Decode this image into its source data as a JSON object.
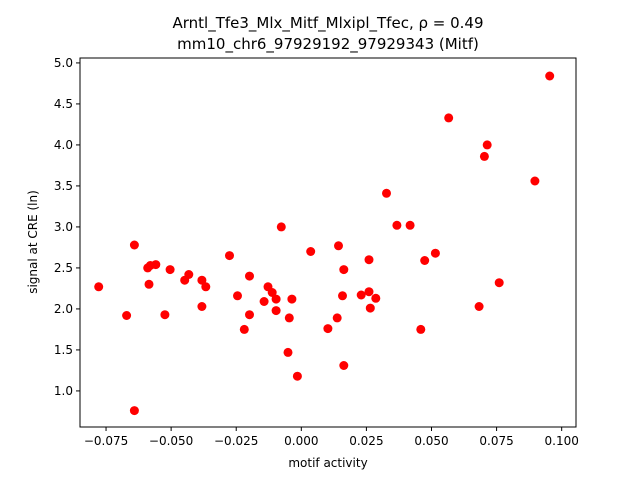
{
  "chart_data": {
    "type": "scatter",
    "title_line1": "Arntl_Tfe3_Mlx_Mitf_Mlxipl_Tfec, ρ = 0.49",
    "title_line2": "mm10_chr6_97929192_97929343 (Mitf)",
    "xlabel": "motif activity",
    "ylabel": "signal at CRE (ln)",
    "xlim": [
      -0.085,
      0.1055
    ],
    "ylim": [
      0.56,
      5.06
    ],
    "x_ticks": [
      -0.075,
      -0.05,
      -0.025,
      0.0,
      0.025,
      0.05,
      0.075,
      0.1
    ],
    "x_tick_labels": [
      "−0.075",
      "−0.050",
      "−0.025",
      "0.000",
      "0.025",
      "0.050",
      "0.075",
      "0.100"
    ],
    "y_ticks": [
      1.0,
      1.5,
      2.0,
      2.5,
      3.0,
      3.5,
      4.0,
      4.5,
      5.0
    ],
    "y_tick_labels": [
      "1.0",
      "1.5",
      "2.0",
      "2.5",
      "3.0",
      "3.5",
      "4.0",
      "4.5",
      "5.0"
    ],
    "grid": false,
    "marker_color": "#ff0000",
    "points": [
      {
        "x": -0.0778,
        "y": 2.27
      },
      {
        "x": -0.0671,
        "y": 1.92
      },
      {
        "x": -0.0641,
        "y": 2.78
      },
      {
        "x": -0.0641,
        "y": 0.76
      },
      {
        "x": -0.059,
        "y": 2.5
      },
      {
        "x": -0.0585,
        "y": 2.3
      },
      {
        "x": -0.058,
        "y": 2.53
      },
      {
        "x": -0.0559,
        "y": 2.54
      },
      {
        "x": -0.0524,
        "y": 1.93
      },
      {
        "x": -0.0504,
        "y": 2.48
      },
      {
        "x": -0.0448,
        "y": 2.35
      },
      {
        "x": -0.0432,
        "y": 2.42
      },
      {
        "x": -0.0382,
        "y": 2.35
      },
      {
        "x": -0.0382,
        "y": 2.03
      },
      {
        "x": -0.0367,
        "y": 2.27
      },
      {
        "x": -0.0276,
        "y": 2.65
      },
      {
        "x": -0.0245,
        "y": 2.16
      },
      {
        "x": -0.0219,
        "y": 1.75
      },
      {
        "x": -0.0199,
        "y": 2.4
      },
      {
        "x": -0.0199,
        "y": 1.93
      },
      {
        "x": -0.0143,
        "y": 2.09
      },
      {
        "x": -0.0128,
        "y": 2.27
      },
      {
        "x": -0.0112,
        "y": 2.2
      },
      {
        "x": -0.0097,
        "y": 2.12
      },
      {
        "x": -0.0097,
        "y": 1.98
      },
      {
        "x": -0.0077,
        "y": 3.0
      },
      {
        "x": -0.0051,
        "y": 1.47
      },
      {
        "x": -0.0046,
        "y": 1.89
      },
      {
        "x": -0.0036,
        "y": 2.12
      },
      {
        "x": -0.0015,
        "y": 1.18
      },
      {
        "x": 0.0036,
        "y": 2.7
      },
      {
        "x": 0.0102,
        "y": 1.76
      },
      {
        "x": 0.0138,
        "y": 1.89
      },
      {
        "x": 0.0143,
        "y": 2.77
      },
      {
        "x": 0.0158,
        "y": 2.16
      },
      {
        "x": 0.0163,
        "y": 2.48
      },
      {
        "x": 0.0163,
        "y": 1.31
      },
      {
        "x": 0.023,
        "y": 2.17
      },
      {
        "x": 0.026,
        "y": 2.21
      },
      {
        "x": 0.026,
        "y": 2.6
      },
      {
        "x": 0.0265,
        "y": 2.01
      },
      {
        "x": 0.0286,
        "y": 2.13
      },
      {
        "x": 0.0327,
        "y": 3.41
      },
      {
        "x": 0.0367,
        "y": 3.02
      },
      {
        "x": 0.0418,
        "y": 3.02
      },
      {
        "x": 0.0459,
        "y": 1.75
      },
      {
        "x": 0.0474,
        "y": 2.59
      },
      {
        "x": 0.0515,
        "y": 2.68
      },
      {
        "x": 0.0566,
        "y": 4.33
      },
      {
        "x": 0.0683,
        "y": 2.03
      },
      {
        "x": 0.0703,
        "y": 3.86
      },
      {
        "x": 0.0714,
        "y": 4.0
      },
      {
        "x": 0.076,
        "y": 2.32
      },
      {
        "x": 0.0897,
        "y": 3.56
      },
      {
        "x": 0.0954,
        "y": 4.84
      }
    ]
  }
}
